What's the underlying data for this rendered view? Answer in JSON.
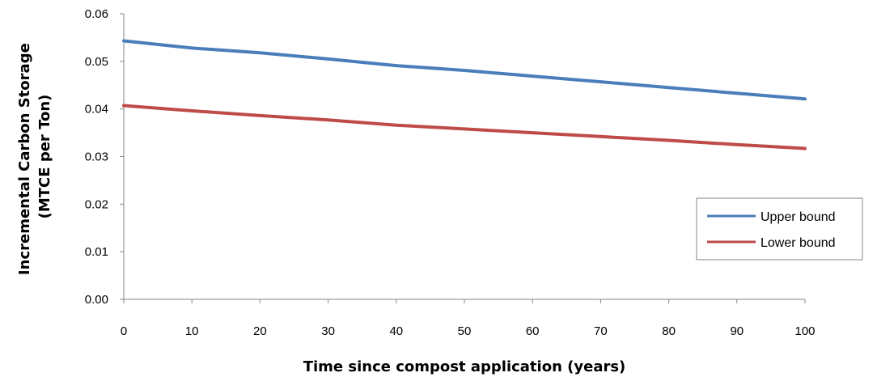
{
  "chart_data": {
    "type": "line",
    "xlabel": "Time since compost application (years)",
    "ylabel_lines": [
      "Incremental Carbon Storage",
      "(MTCE per Ton)"
    ],
    "xlim": [
      0,
      100
    ],
    "ylim": [
      0,
      0.06
    ],
    "x_ticks": [
      0,
      10,
      20,
      30,
      40,
      50,
      60,
      70,
      80,
      90,
      100
    ],
    "y_ticks": [
      0.0,
      0.01,
      0.02,
      0.03,
      0.04,
      0.05,
      0.06
    ],
    "y_tick_labels": [
      "0.00",
      "0.01",
      "0.02",
      "0.03",
      "0.04",
      "0.05",
      "0.06"
    ],
    "grid": false,
    "legend_position": "right",
    "x": [
      0,
      10,
      20,
      30,
      40,
      50,
      60,
      70,
      80,
      90,
      100
    ],
    "series": [
      {
        "name": "Upper bound",
        "color": "#4a7ebb",
        "values": [
          0.0543,
          0.0528,
          0.0518,
          0.0505,
          0.0491,
          0.0481,
          0.0469,
          0.0457,
          0.0445,
          0.0433,
          0.0421
        ]
      },
      {
        "name": "Lower bound",
        "color": "#be4b48",
        "values": [
          0.0407,
          0.0396,
          0.0386,
          0.0377,
          0.0366,
          0.0358,
          0.035,
          0.0342,
          0.0334,
          0.0325,
          0.0317
        ]
      }
    ]
  }
}
